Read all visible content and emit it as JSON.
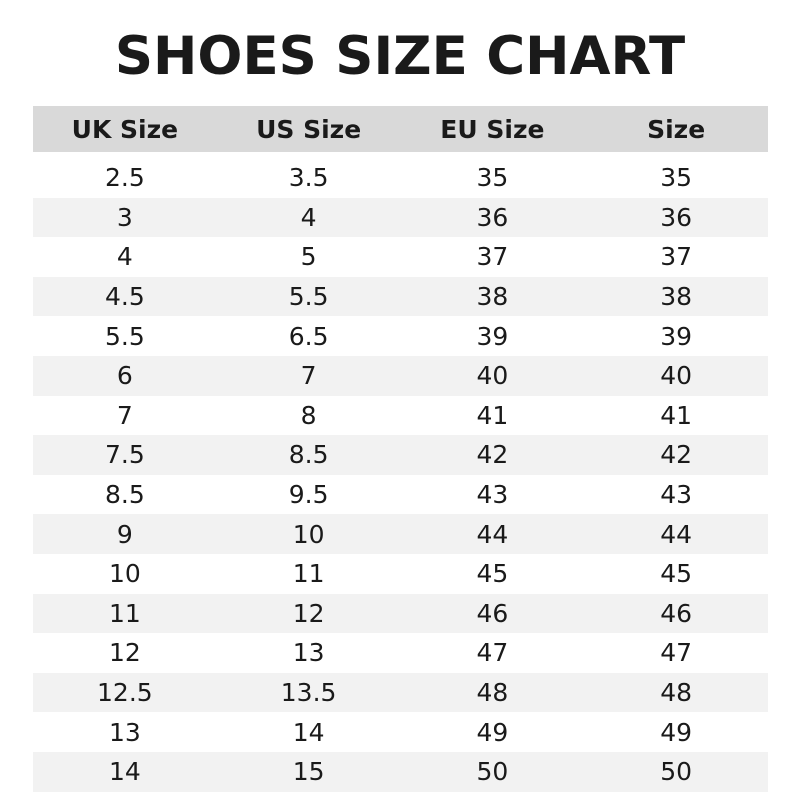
{
  "title": "SHOES SIZE CHART",
  "chart_data": {
    "type": "table",
    "columns": [
      "UK Size",
      "US Size",
      "EU Size",
      "Size"
    ],
    "rows": [
      [
        "2.5",
        "3.5",
        "35",
        "35"
      ],
      [
        "3",
        "4",
        "36",
        "36"
      ],
      [
        "4",
        "5",
        "37",
        "37"
      ],
      [
        "4.5",
        "5.5",
        "38",
        "38"
      ],
      [
        "5.5",
        "6.5",
        "39",
        "39"
      ],
      [
        "6",
        "7",
        "40",
        "40"
      ],
      [
        "7",
        "8",
        "41",
        "41"
      ],
      [
        "7.5",
        "8.5",
        "42",
        "42"
      ],
      [
        "8.5",
        "9.5",
        "43",
        "43"
      ],
      [
        "9",
        "10",
        "44",
        "44"
      ],
      [
        "10",
        "11",
        "45",
        "45"
      ],
      [
        "11",
        "12",
        "46",
        "46"
      ],
      [
        "12",
        "13",
        "47",
        "47"
      ],
      [
        "12.5",
        "13.5",
        "48",
        "48"
      ],
      [
        "13",
        "14",
        "49",
        "49"
      ],
      [
        "14",
        "15",
        "50",
        "50"
      ]
    ]
  },
  "colors": {
    "header_bg": "#d9d9d9",
    "stripe_bg": "#f2f2f2",
    "text": "#1a1a1a"
  }
}
